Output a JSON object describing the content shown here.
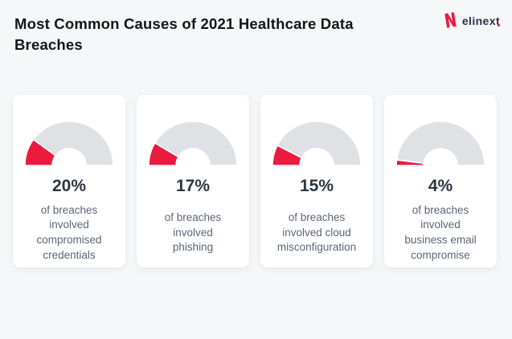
{
  "header": {
    "title": "Most Common Causes of 2021 Healthcare Data Breaches",
    "logo_text_main": "elinex",
    "logo_text_tail": "t"
  },
  "chart_data": {
    "type": "gauge",
    "title": "Most Common Causes of 2021 Healthcare Data Breaches",
    "gauge_range": [
      0,
      100
    ],
    "gauge_sweep_degrees": 180,
    "legend_position": "none",
    "colors": {
      "fill": "#eb1a3f",
      "track": "#dfe1e5",
      "accent_text": "#2d3442",
      "desc_text": "#5c6575"
    },
    "items": [
      {
        "value": 20,
        "pct_label": "20%",
        "label": "of breaches\ninvolved\ncompromised\ncredentials"
      },
      {
        "value": 17,
        "pct_label": "17%",
        "label": "of breaches\ninvolved\nphishing"
      },
      {
        "value": 15,
        "pct_label": "15%",
        "label": "of breaches\ninvolved cloud\nmisconfiguration"
      },
      {
        "value": 4,
        "pct_label": "4%",
        "label": "of breaches\ninvolved\nbusiness email\ncompromise"
      }
    ]
  }
}
